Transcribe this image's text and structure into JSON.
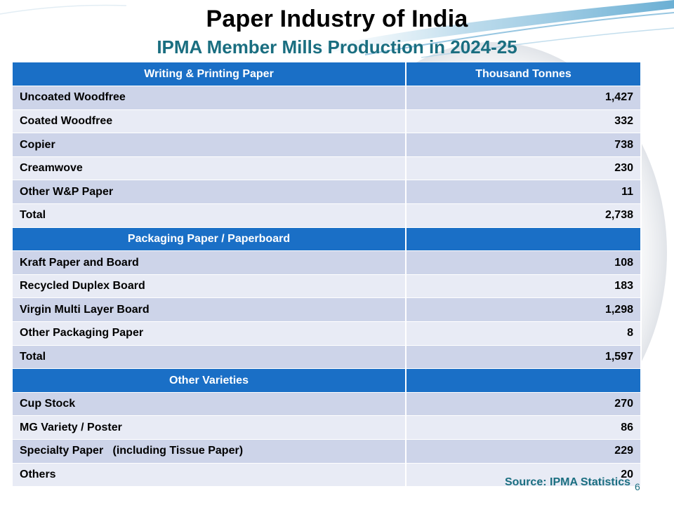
{
  "title": "Paper Industry of India",
  "subtitle": "IPMA Member Mills Production in 2024-25",
  "source": "Source: IPMA Statistics",
  "page_number": "6",
  "colors": {
    "header_bg": "#1a6fc6",
    "row_dark": "#cdd4e9",
    "row_light": "#e8ebf5",
    "title": "#000000",
    "subtitle": "#1a6e80"
  },
  "table": {
    "rows": [
      {
        "type": "header",
        "label": "Writing & Printing Paper",
        "value": "Thousand Tonnes"
      },
      {
        "type": "data",
        "label": "Uncoated Woodfree",
        "value": "1,427"
      },
      {
        "type": "data",
        "label": "Coated Woodfree",
        "value": "332"
      },
      {
        "type": "data",
        "label": "Copier",
        "value": "738"
      },
      {
        "type": "data",
        "label": "Creamwove",
        "value": "230"
      },
      {
        "type": "data",
        "label": "Other W&P Paper",
        "value": "11"
      },
      {
        "type": "data",
        "label": "Total",
        "value": "2,738"
      },
      {
        "type": "header",
        "label": "Packaging Paper / Paperboard",
        "value": ""
      },
      {
        "type": "data",
        "label": "Kraft Paper and Board",
        "value": "108"
      },
      {
        "type": "data",
        "label": "Recycled Duplex Board",
        "value": "183"
      },
      {
        "type": "data",
        "label": "Virgin Multi Layer Board",
        "value": "1,298"
      },
      {
        "type": "data",
        "label": "Other Packaging Paper",
        "value": "8"
      },
      {
        "type": "data",
        "label": "Total",
        "value": "1,597"
      },
      {
        "type": "header",
        "label": "Other Varieties",
        "value": ""
      },
      {
        "type": "data",
        "label": "Cup Stock",
        "value": "270"
      },
      {
        "type": "data",
        "label": "MG Variety / Poster",
        "value": "86"
      },
      {
        "type": "data",
        "label": "Specialty Paper   (including Tissue Paper)",
        "value": "229"
      },
      {
        "type": "data",
        "label": "Others",
        "value": "20"
      }
    ]
  }
}
